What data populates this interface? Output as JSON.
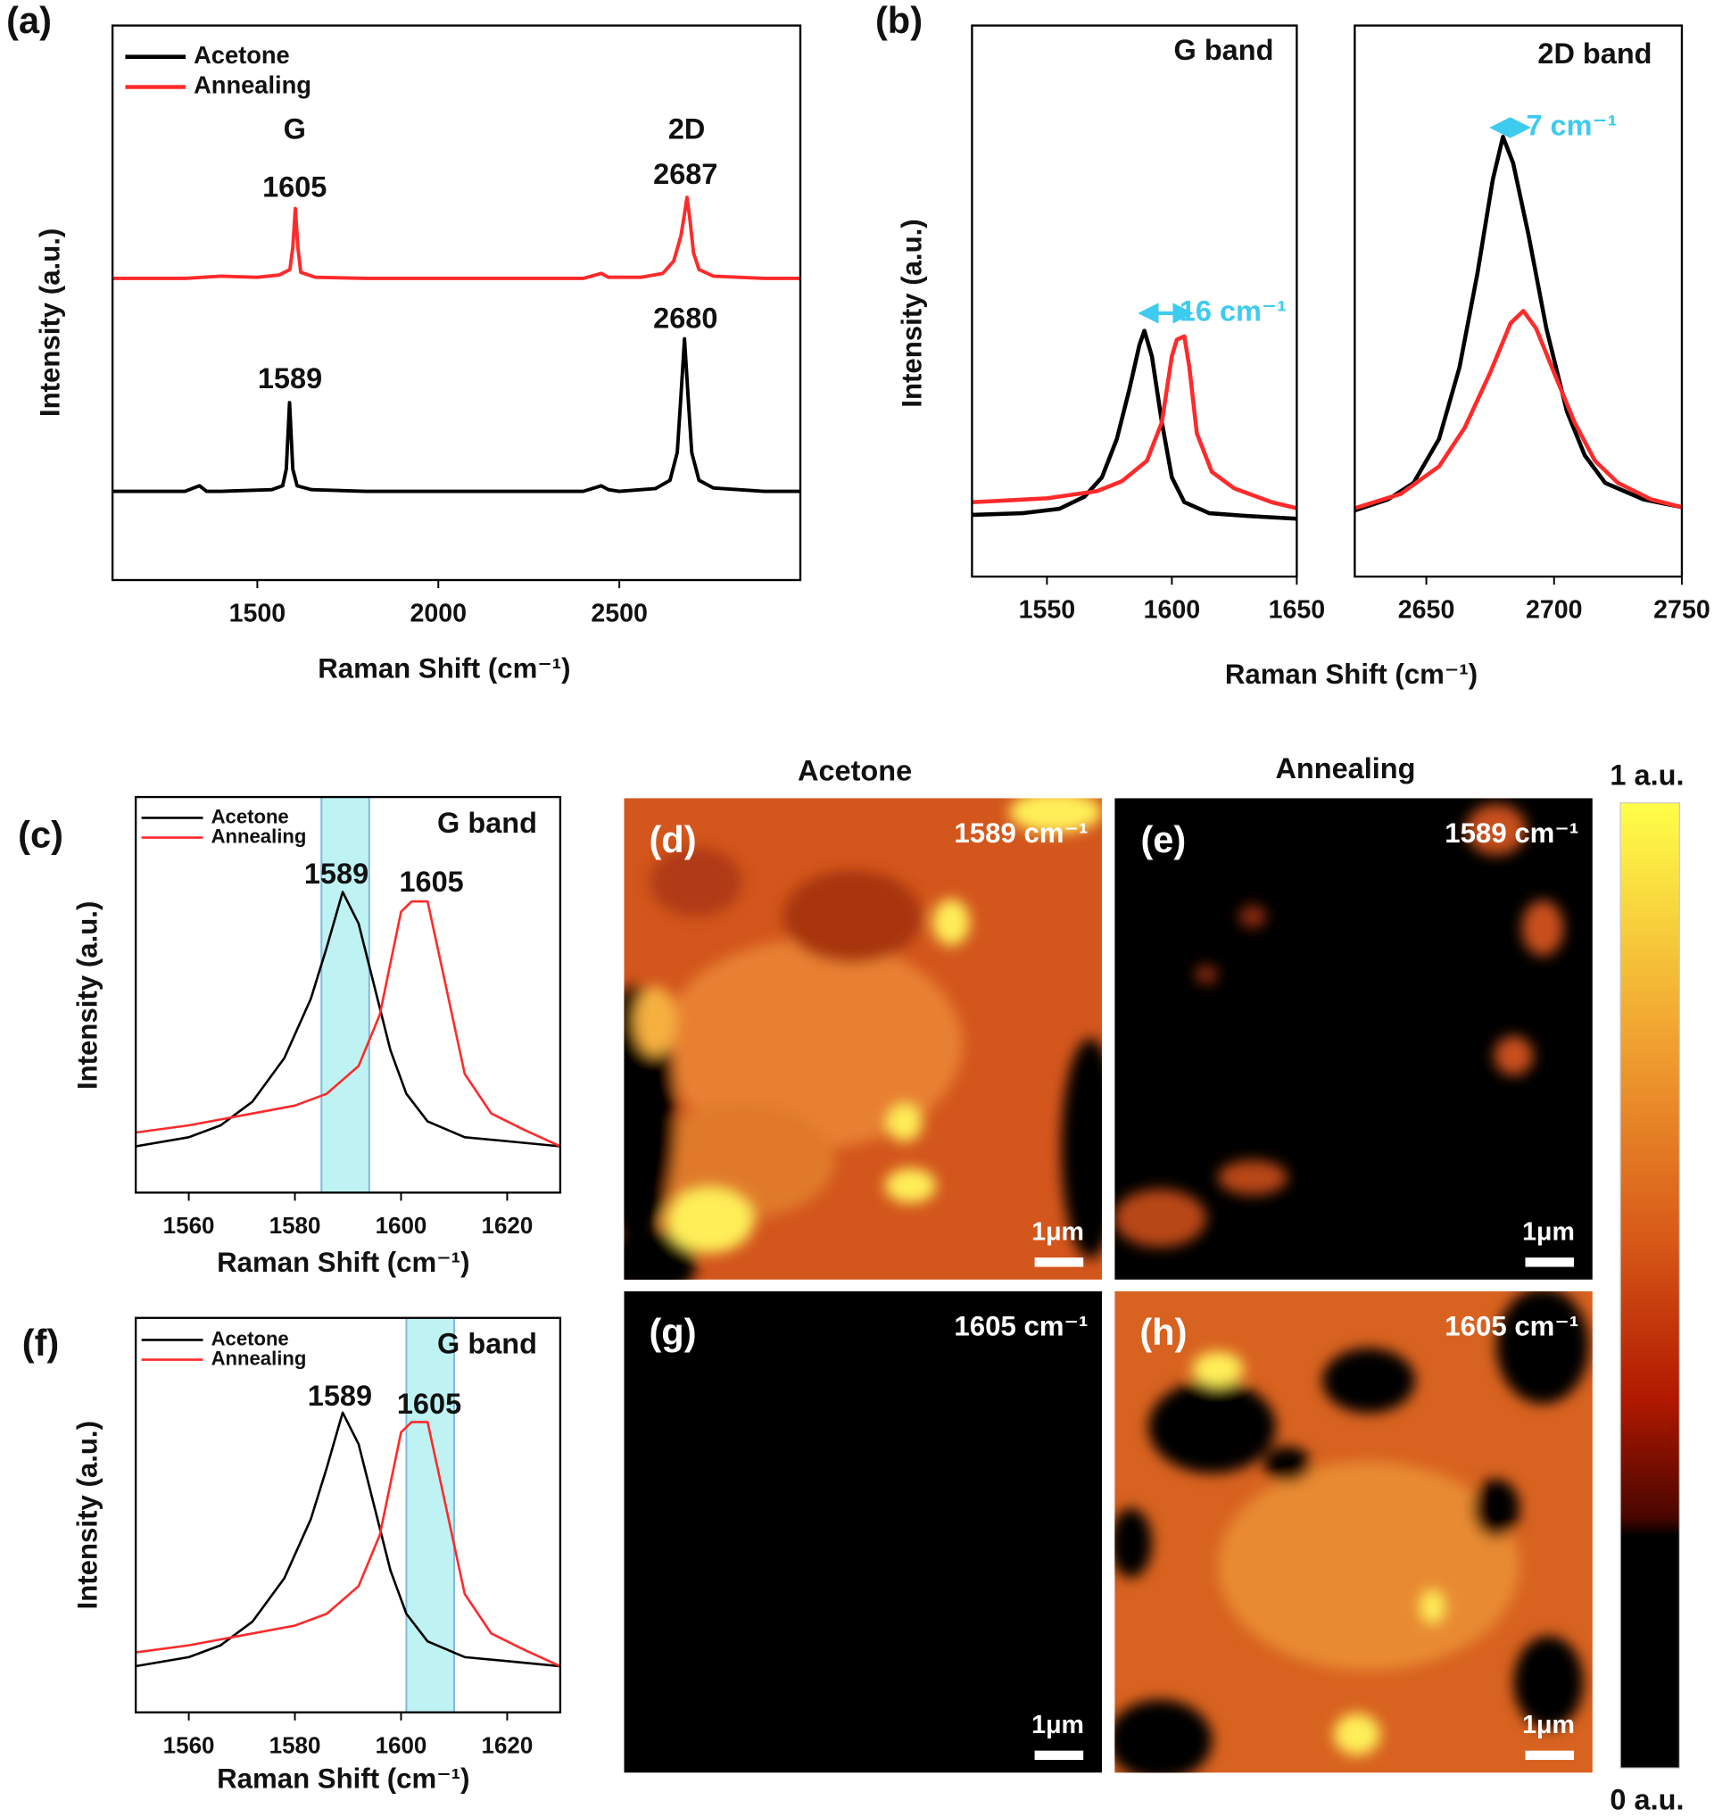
{
  "chart_data": [
    {
      "panel": "(a)",
      "type": "line",
      "xlabel": "Raman Shift (cm⁻¹)",
      "ylabel": "Intensity (a.u.)",
      "xlim": [
        1100,
        3000
      ],
      "ylim": [
        0,
        100
      ],
      "xticks": [
        1500,
        2000,
        2500
      ],
      "legend": "upper left",
      "annotations": [
        "G",
        "2D",
        "1605",
        "2687",
        "1589",
        "2680"
      ],
      "series": [
        {
          "name": "Acetone",
          "color": "#000000",
          "x": [
            1100,
            1300,
            1340,
            1360,
            1400,
            1540,
            1570,
            1580,
            1589,
            1598,
            1610,
            1650,
            1800,
            2400,
            2450,
            2470,
            2500,
            2600,
            2640,
            2660,
            2670,
            2680,
            2690,
            2700,
            2720,
            2760,
            2900,
            3000
          ],
          "values": [
            16,
            16,
            17,
            16,
            16,
            16.3,
            17,
            20,
            32,
            20,
            17,
            16.3,
            16,
            16,
            17,
            16.3,
            16,
            16.5,
            18,
            23,
            33,
            43.5,
            33,
            23,
            18,
            16.6,
            16,
            16
          ]
        },
        {
          "name": "Annealing",
          "color": "#ff2a2a",
          "x": [
            1100,
            1300,
            1400,
            1500,
            1560,
            1590,
            1598,
            1605,
            1612,
            1620,
            1660,
            1800,
            2400,
            2450,
            2470,
            2560,
            2620,
            2650,
            2670,
            2680,
            2687,
            2695,
            2705,
            2720,
            2760,
            2900,
            3000
          ],
          "values": [
            54.4,
            54.4,
            54.8,
            54.6,
            55,
            56,
            60,
            67,
            60,
            55.5,
            54.6,
            54.4,
            54.4,
            55.3,
            54.6,
            54.6,
            55.3,
            57.5,
            62,
            66,
            69,
            65,
            59,
            56,
            54.8,
            54.4,
            54.4
          ]
        }
      ]
    },
    {
      "panel": "(b)",
      "type": "line",
      "title": "G band",
      "xlabel": "Raman Shift (cm⁻¹)",
      "ylabel": "Intensity (a.u.)",
      "xlim": [
        1520,
        1650
      ],
      "ylim": [
        0,
        100
      ],
      "xticks": [
        1550,
        1600,
        1650
      ],
      "annotations": [
        "16 cm⁻¹"
      ],
      "annotation_color": "#3ecbf0",
      "series": [
        {
          "color": "#000000",
          "x": [
            1520,
            1540,
            1555,
            1565,
            1572,
            1578,
            1583,
            1587,
            1589,
            1592,
            1596,
            1600,
            1605,
            1615,
            1630,
            1650
          ],
          "values": [
            11.2,
            11.5,
            12.3,
            14.5,
            18,
            25,
            34,
            42,
            44.6,
            40,
            28,
            18,
            13.5,
            11.5,
            11,
            10.5
          ]
        },
        {
          "color": "#ff2a2a",
          "x": [
            1520,
            1550,
            1570,
            1580,
            1590,
            1596,
            1600,
            1602,
            1605,
            1607,
            1610,
            1616,
            1625,
            1640,
            1650
          ],
          "values": [
            13.5,
            14.2,
            15.5,
            17.3,
            21,
            28,
            40,
            43,
            43.6,
            38,
            26,
            19,
            16,
            13.5,
            12.4
          ]
        }
      ]
    },
    {
      "type": "line",
      "title": "2D band",
      "xlim": [
        2622,
        2750
      ],
      "ylim": [
        0,
        100
      ],
      "xticks": [
        2650,
        2700,
        2750
      ],
      "annotations": [
        "7 cm⁻¹"
      ],
      "annotation_color": "#3ecbf0",
      "series": [
        {
          "color": "#000000",
          "x": [
            2622,
            2635,
            2645,
            2655,
            2663,
            2670,
            2676,
            2680,
            2684,
            2690,
            2697,
            2705,
            2712,
            2720,
            2735,
            2750
          ],
          "values": [
            12,
            14,
            17,
            25,
            38,
            55,
            72,
            79.8,
            75,
            62,
            45,
            30,
            22,
            17,
            14,
            12.6
          ]
        },
        {
          "color": "#ff2a2a",
          "x": [
            2622,
            2640,
            2655,
            2665,
            2675,
            2683,
            2688,
            2693,
            2700,
            2708,
            2716,
            2725,
            2738,
            2750
          ],
          "values": [
            12.4,
            15,
            20,
            27,
            37,
            46,
            48.2,
            45,
            37,
            28,
            21,
            17,
            14,
            12.6
          ]
        }
      ]
    },
    {
      "panel": "(c)",
      "type": "line",
      "title": "G band",
      "xlabel": "Raman Shift (cm⁻¹)",
      "ylabel": "Intensity (a.u.)",
      "xlim": [
        1550,
        1630
      ],
      "ylim": [
        0,
        100
      ],
      "xticks": [
        1560,
        1580,
        1600,
        1620
      ],
      "legend": "upper left",
      "highlight": [
        1585,
        1594
      ],
      "highlight_color": "#bff3f3",
      "annotations": [
        "1589",
        "1605"
      ],
      "series": [
        {
          "name": "Acetone",
          "color": "#000000",
          "x": [
            1550,
            1560,
            1566,
            1572,
            1578,
            1583,
            1586,
            1589,
            1592,
            1595,
            1598,
            1601,
            1605,
            1612,
            1620,
            1630
          ],
          "values": [
            11.7,
            14,
            17,
            23,
            34,
            49,
            62,
            76,
            68,
            52,
            36,
            25,
            18,
            14,
            13,
            11.7
          ]
        },
        {
          "name": "Annealing",
          "color": "#ff2a2a",
          "x": [
            1550,
            1560,
            1570,
            1580,
            1586,
            1592,
            1596,
            1600,
            1602,
            1605,
            1608,
            1612,
            1617,
            1623,
            1630
          ],
          "values": [
            15.2,
            17,
            19.5,
            22,
            25,
            32,
            45,
            71,
            73.6,
            73.6,
            55,
            30,
            20,
            16,
            11.7
          ]
        }
      ]
    },
    {
      "panel": "(f)",
      "type": "line",
      "title": "G band",
      "xlabel": "Raman Shift (cm⁻¹)",
      "ylabel": "Intensity (a.u.)",
      "xlim": [
        1550,
        1630
      ],
      "ylim": [
        0,
        100
      ],
      "xticks": [
        1560,
        1580,
        1600,
        1620
      ],
      "legend": "upper left",
      "highlight": [
        1601,
        1610
      ],
      "highlight_color": "#bff3f3",
      "annotations": [
        "1589",
        "1605"
      ],
      "series": [
        {
          "name": "Acetone",
          "color": "#000000",
          "x": [
            1550,
            1560,
            1566,
            1572,
            1578,
            1583,
            1586,
            1589,
            1592,
            1595,
            1598,
            1601,
            1605,
            1612,
            1620,
            1630
          ],
          "values": [
            11.7,
            14,
            17,
            23,
            34,
            49,
            62,
            76,
            68,
            52,
            36,
            25,
            18,
            14,
            13,
            11.7
          ]
        },
        {
          "name": "Annealing",
          "color": "#ff2a2a",
          "x": [
            1550,
            1560,
            1570,
            1580,
            1586,
            1592,
            1596,
            1600,
            1602,
            1605,
            1608,
            1612,
            1617,
            1623,
            1630
          ],
          "values": [
            15.2,
            17,
            19.5,
            22,
            25,
            32,
            45,
            71,
            73.6,
            73.6,
            55,
            30,
            20,
            16,
            11.7
          ]
        }
      ]
    }
  ],
  "maps": {
    "columns": [
      "Acetone",
      "Annealing"
    ],
    "panels": [
      {
        "label": "(d)",
        "wavenumber": "1589 cm⁻¹",
        "scale_bar": "1μm"
      },
      {
        "label": "(e)",
        "wavenumber": "1589 cm⁻¹",
        "scale_bar": "1μm"
      },
      {
        "label": "(g)",
        "wavenumber": "1605 cm⁻¹",
        "scale_bar": "1μm"
      },
      {
        "label": "(h)",
        "wavenumber": "1605 cm⁻¹",
        "scale_bar": "1μm"
      }
    ],
    "colorbar": {
      "top": "1 a.u.",
      "bottom": "0 a.u."
    }
  }
}
